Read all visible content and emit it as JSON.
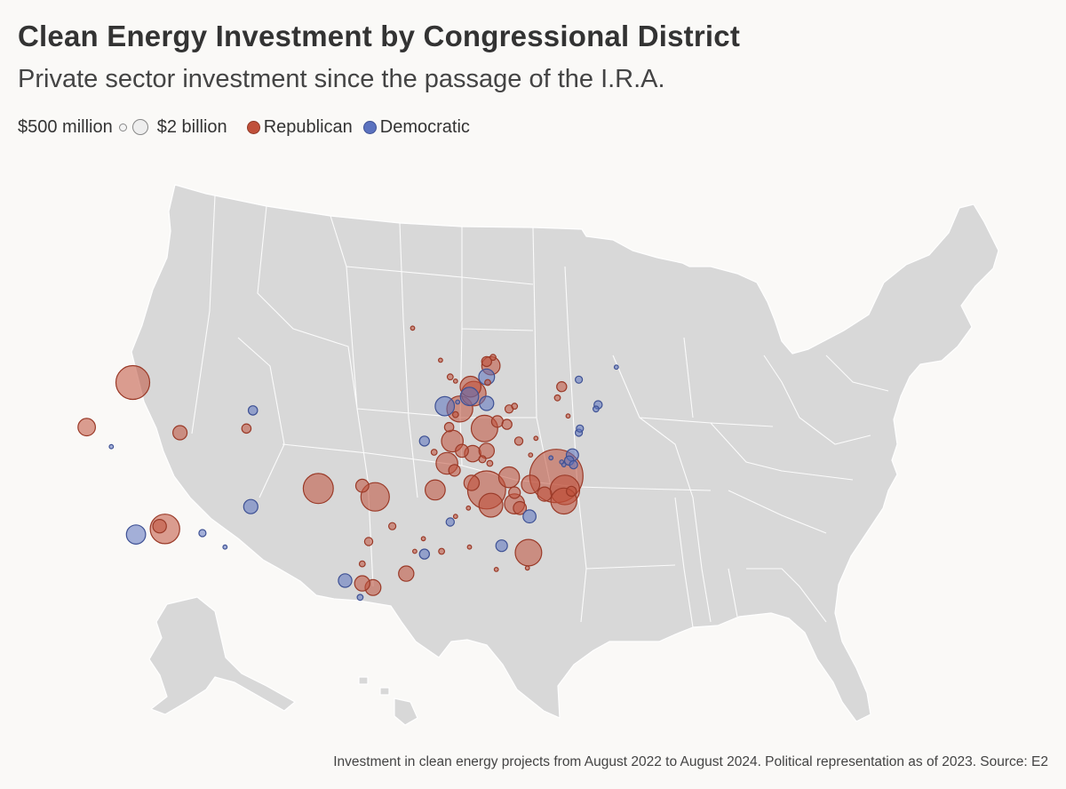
{
  "title": "Clean Energy Investment by Congressional District",
  "subtitle": "Private sector investment since the passage of the I.R.A.",
  "legend": {
    "size_small_label": "$500 million",
    "size_large_label": "$2 billion",
    "republican_label": "Republican",
    "democratic_label": "Democratic"
  },
  "colors": {
    "background": "#faf9f7",
    "land": "#d8d8d8",
    "borders": "#ffffff",
    "republican": "#c0503a",
    "democratic": "#5b72bf"
  },
  "footer": "Investment in clean energy projects from August 2022 to August 2024. Political representation as of 2023. Source: E2",
  "chart_data": {
    "type": "bubble-map",
    "size_unit": "USD",
    "party_keys": [
      "Republican",
      "Democratic"
    ],
    "points": [
      {
        "lon": -117.6,
        "lat": 43.6,
        "party": "R",
        "value": 3.4
      },
      {
        "lon": -121.9,
        "lat": 40.4,
        "party": "R",
        "value": 0.9
      },
      {
        "lon": -119.6,
        "lat": 39.0,
        "party": "D",
        "value": 0.05
      },
      {
        "lon": -113.2,
        "lat": 40.0,
        "party": "R",
        "value": 0.6
      },
      {
        "lon": -106.4,
        "lat": 41.6,
        "party": "D",
        "value": 0.25
      },
      {
        "lon": -107.0,
        "lat": 40.3,
        "party": "R",
        "value": 0.25
      },
      {
        "lon": -114.6,
        "lat": 33.1,
        "party": "R",
        "value": 2.6
      },
      {
        "lon": -115.1,
        "lat": 33.3,
        "party": "R",
        "value": 0.55
      },
      {
        "lon": -117.3,
        "lat": 32.7,
        "party": "D",
        "value": 1.1
      },
      {
        "lon": -111.1,
        "lat": 32.8,
        "party": "D",
        "value": 0.15
      },
      {
        "lon": -106.6,
        "lat": 34.7,
        "party": "D",
        "value": 0.6
      },
      {
        "lon": -109.0,
        "lat": 31.8,
        "party": "D",
        "value": 0.05
      },
      {
        "lon": -100.3,
        "lat": 36.0,
        "party": "R",
        "value": 2.7
      },
      {
        "lon": -96.2,
        "lat": 36.2,
        "party": "R",
        "value": 0.5
      },
      {
        "lon": -95.0,
        "lat": 35.4,
        "party": "R",
        "value": 2.4
      },
      {
        "lon": -93.4,
        "lat": 33.3,
        "party": "R",
        "value": 0.15
      },
      {
        "lon": -95.6,
        "lat": 32.2,
        "party": "R",
        "value": 0.2
      },
      {
        "lon": -96.2,
        "lat": 30.6,
        "party": "R",
        "value": 0.1
      },
      {
        "lon": -97.8,
        "lat": 29.4,
        "party": "D",
        "value": 0.55
      },
      {
        "lon": -96.2,
        "lat": 29.2,
        "party": "R",
        "value": 0.7
      },
      {
        "lon": -95.2,
        "lat": 28.9,
        "party": "R",
        "value": 0.75
      },
      {
        "lon": -96.4,
        "lat": 28.2,
        "party": "D",
        "value": 0.1
      },
      {
        "lon": -92.1,
        "lat": 29.9,
        "party": "R",
        "value": 0.7
      },
      {
        "lon": -91.3,
        "lat": 31.5,
        "party": "R",
        "value": 0.05
      },
      {
        "lon": -90.4,
        "lat": 31.3,
        "party": "D",
        "value": 0.3
      },
      {
        "lon": -90.5,
        "lat": 32.4,
        "party": "R",
        "value": 0.05
      },
      {
        "lon": -88.0,
        "lat": 33.6,
        "party": "D",
        "value": 0.2
      },
      {
        "lon": -88.8,
        "lat": 31.5,
        "party": "R",
        "value": 0.1
      },
      {
        "lon": -86.2,
        "lat": 31.8,
        "party": "R",
        "value": 0.05
      },
      {
        "lon": -89.4,
        "lat": 35.9,
        "party": "R",
        "value": 1.2
      },
      {
        "lon": -87.6,
        "lat": 37.3,
        "party": "R",
        "value": 0.4
      },
      {
        "lon": -88.3,
        "lat": 37.8,
        "party": "R",
        "value": 1.4
      },
      {
        "lon": -86.0,
        "lat": 36.4,
        "party": "R",
        "value": 0.7
      },
      {
        "lon": -84.6,
        "lat": 35.9,
        "party": "R",
        "value": 4.3
      },
      {
        "lon": -84.2,
        "lat": 34.8,
        "party": "R",
        "value": 1.7
      },
      {
        "lon": -86.3,
        "lat": 34.6,
        "party": "R",
        "value": 0.05
      },
      {
        "lon": -85.0,
        "lat": 38.1,
        "party": "R",
        "value": 0.15
      },
      {
        "lon": -84.3,
        "lat": 37.8,
        "party": "R",
        "value": 0.1
      },
      {
        "lon": -87.5,
        "lat": 34.0,
        "party": "R",
        "value": 0.05
      },
      {
        "lon": -82.5,
        "lat": 36.8,
        "party": "R",
        "value": 1.3
      },
      {
        "lon": -80.5,
        "lat": 36.3,
        "party": "R",
        "value": 1.0
      },
      {
        "lon": -82.0,
        "lat": 35.7,
        "party": "R",
        "value": 0.4
      },
      {
        "lon": -82.0,
        "lat": 34.9,
        "party": "R",
        "value": 1.2
      },
      {
        "lon": -81.5,
        "lat": 34.6,
        "party": "R",
        "value": 0.5
      },
      {
        "lon": -80.6,
        "lat": 34.0,
        "party": "D",
        "value": 0.5
      },
      {
        "lon": -83.2,
        "lat": 31.9,
        "party": "D",
        "value": 0.4
      },
      {
        "lon": -80.7,
        "lat": 31.4,
        "party": "R",
        "value": 2.1
      },
      {
        "lon": -80.8,
        "lat": 30.3,
        "party": "R",
        "value": 0.05
      },
      {
        "lon": -83.7,
        "lat": 30.2,
        "party": "R",
        "value": 0.05
      },
      {
        "lon": -78.1,
        "lat": 36.9,
        "party": "R",
        "value": 8.5
      },
      {
        "lon": -77.3,
        "lat": 35.9,
        "party": "R",
        "value": 2.6
      },
      {
        "lon": -77.4,
        "lat": 35.1,
        "party": "R",
        "value": 2.0
      },
      {
        "lon": -76.7,
        "lat": 35.8,
        "party": "R",
        "value": 0.3
      },
      {
        "lon": -79.2,
        "lat": 35.6,
        "party": "R",
        "value": 0.6
      },
      {
        "lon": -77.6,
        "lat": 37.9,
        "party": "D",
        "value": 0.05
      },
      {
        "lon": -78.6,
        "lat": 38.2,
        "party": "D",
        "value": 0.05
      },
      {
        "lon": -76.6,
        "lat": 38.4,
        "party": "D",
        "value": 0.45
      },
      {
        "lon": -76.9,
        "lat": 38.0,
        "party": "D",
        "value": 0.25
      },
      {
        "lon": -76.5,
        "lat": 37.7,
        "party": "D",
        "value": 0.2
      },
      {
        "lon": -77.4,
        "lat": 37.7,
        "party": "D",
        "value": 0.05
      },
      {
        "lon": -76.0,
        "lat": 40.0,
        "party": "D",
        "value": 0.15
      },
      {
        "lon": -75.9,
        "lat": 40.3,
        "party": "D",
        "value": 0.15
      },
      {
        "lon": -77.0,
        "lat": 41.2,
        "party": "R",
        "value": 0.05
      },
      {
        "lon": -80.0,
        "lat": 39.6,
        "party": "R",
        "value": 0.05
      },
      {
        "lon": -80.5,
        "lat": 38.4,
        "party": "R",
        "value": 0.05
      },
      {
        "lon": -87.1,
        "lat": 41.7,
        "party": "R",
        "value": 2.0
      },
      {
        "lon": -87.5,
        "lat": 41.3,
        "party": "R",
        "value": 0.1
      },
      {
        "lon": -88.1,
        "lat": 40.4,
        "party": "R",
        "value": 0.25
      },
      {
        "lon": -88.5,
        "lat": 41.9,
        "party": "D",
        "value": 1.1
      },
      {
        "lon": -87.3,
        "lat": 42.2,
        "party": "D",
        "value": 0.05
      },
      {
        "lon": -86.1,
        "lat": 43.3,
        "party": "R",
        "value": 1.3
      },
      {
        "lon": -86.2,
        "lat": 42.6,
        "party": "D",
        "value": 1.0
      },
      {
        "lon": -85.8,
        "lat": 42.8,
        "party": "R",
        "value": 1.8
      },
      {
        "lon": -84.6,
        "lat": 42.1,
        "party": "D",
        "value": 0.6
      },
      {
        "lon": -84.6,
        "lat": 44.0,
        "party": "D",
        "value": 0.75
      },
      {
        "lon": -84.2,
        "lat": 44.8,
        "party": "R",
        "value": 1.0
      },
      {
        "lon": -84.6,
        "lat": 45.1,
        "party": "R",
        "value": 0.3
      },
      {
        "lon": -84.0,
        "lat": 45.4,
        "party": "R",
        "value": 0.1
      },
      {
        "lon": -84.5,
        "lat": 43.6,
        "party": "R",
        "value": 0.1
      },
      {
        "lon": -88.0,
        "lat": 44.0,
        "party": "R",
        "value": 0.1
      },
      {
        "lon": -87.5,
        "lat": 43.7,
        "party": "R",
        "value": 0.05
      },
      {
        "lon": -88.9,
        "lat": 45.2,
        "party": "R",
        "value": 0.05
      },
      {
        "lon": -84.8,
        "lat": 40.3,
        "party": "R",
        "value": 2.1
      },
      {
        "lon": -83.6,
        "lat": 40.8,
        "party": "R",
        "value": 0.4
      },
      {
        "lon": -82.7,
        "lat": 40.6,
        "party": "R",
        "value": 0.3
      },
      {
        "lon": -82.5,
        "lat": 41.7,
        "party": "R",
        "value": 0.2
      },
      {
        "lon": -82.0,
        "lat": 41.9,
        "party": "R",
        "value": 0.1
      },
      {
        "lon": -81.6,
        "lat": 39.4,
        "party": "R",
        "value": 0.2
      },
      {
        "lon": -86.9,
        "lat": 38.7,
        "party": "R",
        "value": 0.5
      },
      {
        "lon": -85.9,
        "lat": 38.5,
        "party": "R",
        "value": 0.8
      },
      {
        "lon": -90.4,
        "lat": 39.4,
        "party": "D",
        "value": 0.3
      },
      {
        "lon": -89.5,
        "lat": 38.6,
        "party": "R",
        "value": 0.1
      },
      {
        "lon": -87.8,
        "lat": 39.4,
        "party": "R",
        "value": 1.4
      },
      {
        "lon": -84.6,
        "lat": 38.7,
        "party": "R",
        "value": 0.7
      },
      {
        "lon": -77.6,
        "lat": 43.3,
        "party": "R",
        "value": 0.3
      },
      {
        "lon": -76.0,
        "lat": 43.8,
        "party": "D",
        "value": 0.15
      },
      {
        "lon": -78.0,
        "lat": 42.5,
        "party": "R",
        "value": 0.1
      },
      {
        "lon": -74.4,
        "lat": 41.7,
        "party": "D",
        "value": 0.1
      },
      {
        "lon": -74.2,
        "lat": 42.0,
        "party": "D",
        "value": 0.2
      },
      {
        "lon": -72.5,
        "lat": 44.7,
        "party": "D",
        "value": 0.05
      },
      {
        "lon": -91.5,
        "lat": 47.5,
        "party": "R",
        "value": 0.05
      }
    ]
  }
}
